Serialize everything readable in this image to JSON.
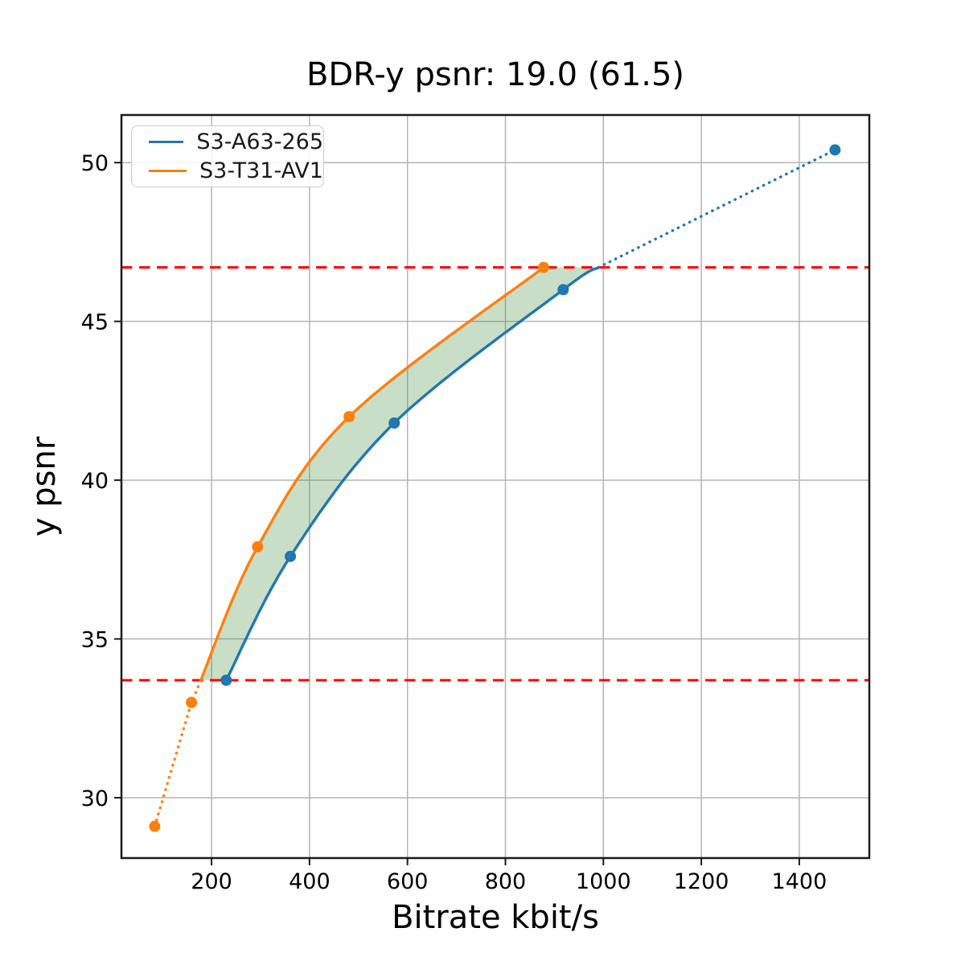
{
  "chart_data": {
    "type": "line",
    "title": "BDR-y psnr: 19.0 (61.5)",
    "xlabel": "Bitrate kbit/s",
    "ylabel": "y psnr",
    "xlim": [
      16,
      1543
    ],
    "ylim": [
      28.1,
      51.5
    ],
    "xticks": [
      200,
      400,
      600,
      800,
      1000,
      1200,
      1400
    ],
    "yticks": [
      30,
      35,
      40,
      45,
      50
    ],
    "grid": true,
    "grid_color": "#b4b4b4",
    "legend_position": "upper-left",
    "series": [
      {
        "name": "S3-A63-265",
        "color": "#1f77b4",
        "points": [
          [
            230,
            33.7
          ],
          [
            361,
            37.6
          ],
          [
            573,
            41.8
          ],
          [
            918,
            46.0
          ],
          [
            1473,
            50.4
          ]
        ],
        "solid_control": [
          [
            230,
            33.7
          ],
          [
            361,
            37.6
          ],
          [
            573,
            41.8
          ],
          [
            918,
            46.0
          ],
          [
            990,
            46.7
          ]
        ],
        "dotted_control": [
          [
            990,
            46.7
          ],
          [
            1473,
            50.4
          ]
        ]
      },
      {
        "name": "S3-T31-AV1",
        "color": "#ff7f0e",
        "points": [
          [
            84,
            29.1
          ],
          [
            159,
            33.0
          ],
          [
            294,
            37.9
          ],
          [
            481,
            42.0
          ],
          [
            878,
            46.7
          ]
        ],
        "solid_control": [
          [
            178,
            33.7
          ],
          [
            294,
            37.9
          ],
          [
            481,
            42.0
          ],
          [
            878,
            46.7
          ]
        ],
        "dotted_control": [
          [
            84,
            29.1
          ],
          [
            159,
            33.0
          ],
          [
            178,
            33.7
          ]
        ]
      }
    ],
    "hlines": {
      "values": [
        33.7,
        46.7
      ],
      "color": "#ff0000",
      "style": "dashed"
    },
    "fill_between": {
      "upper_series": "S3-T31-AV1",
      "lower_series": "S3-A63-265",
      "y_range": [
        33.7,
        46.7
      ],
      "color": "#4c9141",
      "opacity": 0.3
    }
  }
}
